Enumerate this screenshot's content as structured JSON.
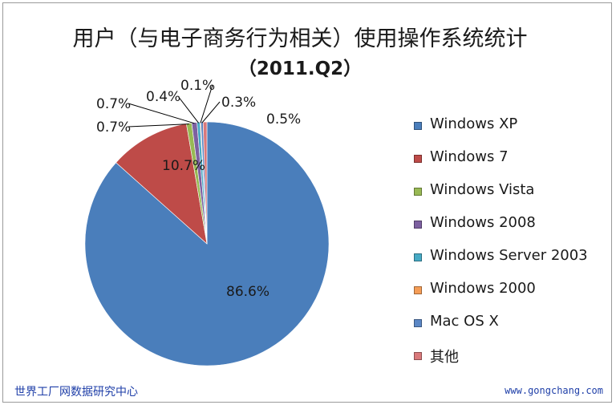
{
  "chart_data": {
    "type": "pie",
    "title": "用户（与电子商务行为相关）使用操作系统统计",
    "subtitle": "（2011.Q2）",
    "legend_position": "right",
    "categories": [
      "Windows XP",
      "Windows 7",
      "Windows Vista",
      "Windows 2008",
      "Windows Server 2003",
      "Windows 2000",
      "Mac OS X",
      "其他"
    ],
    "values": [
      86.6,
      10.7,
      0.7,
      0.7,
      0.4,
      0.1,
      0.3,
      0.5
    ],
    "labels": [
      "86.6%",
      "10.7%",
      "0.7%",
      "0.7%",
      "0.4%",
      "0.1%",
      "0.3%",
      "0.5%"
    ],
    "colors": [
      "#4a7ebb",
      "#be4b48",
      "#98b954",
      "#7d60a0",
      "#46aac5",
      "#f59d56",
      "#5b87c5",
      "#d9797b"
    ]
  },
  "footer": {
    "source": "世界工厂网数据研究中心",
    "url": "www.gongchang.com"
  }
}
